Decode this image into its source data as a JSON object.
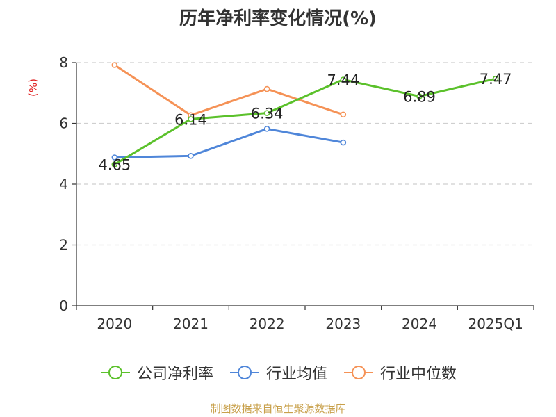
{
  "chart_data": {
    "type": "line",
    "title": "历年净利率变化情况(%)",
    "ylabel": "(%)",
    "categories": [
      "2020",
      "2021",
      "2022",
      "2023",
      "2024",
      "2025Q1"
    ],
    "ylim": [
      0,
      8
    ],
    "yticks": [
      0,
      2,
      4,
      6,
      8
    ],
    "grid": true,
    "legend_position": "bottom",
    "series": [
      {
        "name": "公司净利率",
        "color": "#5bc12b",
        "values": [
          4.65,
          6.14,
          6.34,
          7.44,
          6.89,
          7.47
        ],
        "show_labels": true
      },
      {
        "name": "行业均值",
        "color": "#4f86d9",
        "values": [
          4.88,
          4.93,
          5.82,
          5.37,
          null,
          null
        ],
        "show_labels": false
      },
      {
        "name": "行业中位数",
        "color": "#f59256",
        "values": [
          7.92,
          6.27,
          7.13,
          6.29,
          null,
          null
        ],
        "show_labels": false
      }
    ],
    "data_labels": [
      "4.65",
      "6.14",
      "6.34",
      "7.44",
      "6.89",
      "7.47"
    ]
  },
  "source": "制图数据来自恒生聚源数据库"
}
